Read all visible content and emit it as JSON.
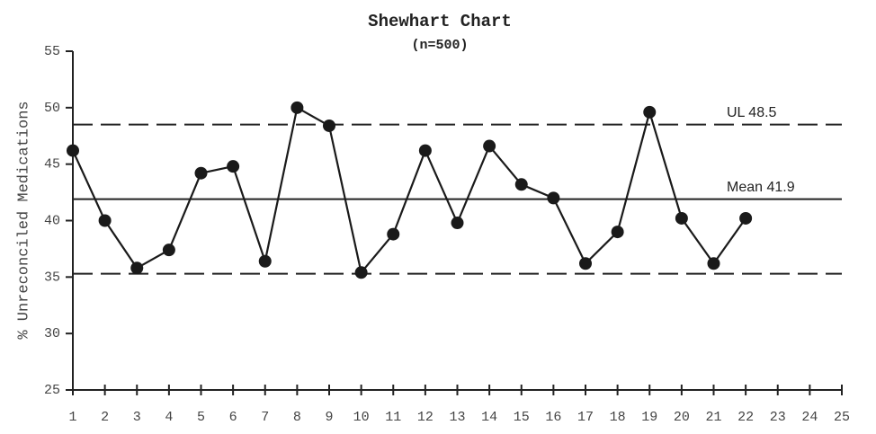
{
  "chart_data": {
    "type": "line",
    "title": "Shewhart Chart",
    "subtitle": "(n=500)",
    "y_label": "% Unreconciled Medications",
    "x": [
      1,
      2,
      3,
      4,
      5,
      6,
      7,
      8,
      9,
      10,
      11,
      12,
      13,
      14,
      15,
      16,
      17,
      18,
      19,
      20,
      21,
      22
    ],
    "values": [
      46.2,
      40.0,
      35.8,
      37.4,
      44.2,
      44.8,
      36.4,
      50.0,
      48.4,
      35.4,
      38.8,
      46.2,
      39.8,
      46.6,
      43.2,
      42.0,
      36.2,
      39.0,
      49.6,
      40.2,
      36.2,
      40.2
    ],
    "color": "#1a1a1a",
    "xlim": [
      1,
      25
    ],
    "xticks": [
      1,
      2,
      3,
      4,
      5,
      6,
      7,
      8,
      9,
      10,
      11,
      12,
      13,
      14,
      15,
      16,
      17,
      18,
      19,
      20,
      21,
      22,
      23,
      24,
      25
    ],
    "ylim": [
      25,
      55
    ],
    "yticks": [
      25,
      30,
      35,
      40,
      45,
      50,
      55
    ],
    "reference_lines": [
      {
        "label": "UL 48.5",
        "value": 48.5,
        "style": "dashed"
      },
      {
        "label": "Mean 41.9",
        "value": 41.9,
        "style": "solid"
      },
      {
        "value": 35.3,
        "style": "dashed"
      }
    ]
  }
}
